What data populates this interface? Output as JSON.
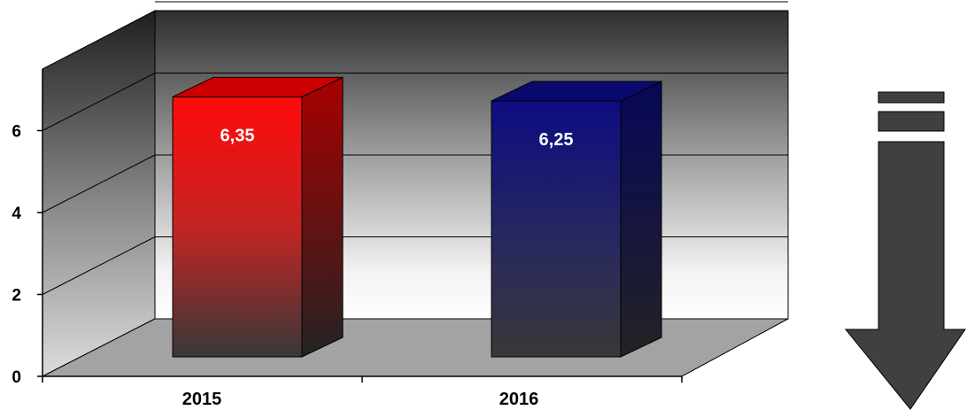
{
  "chart_data": {
    "type": "bar",
    "categories": [
      "2015",
      "2016"
    ],
    "values": [
      6.35,
      6.25
    ],
    "value_labels": [
      "6,35",
      "6,25"
    ],
    "ylim": [
      0,
      8
    ],
    "y_ticks": [
      0,
      2,
      4,
      6
    ],
    "y_tick_labels": [
      "0",
      "2",
      "4",
      "6"
    ],
    "grid": true,
    "three_d": true,
    "bar_colors": [
      "#ff0000",
      "#0b0b7a"
    ]
  },
  "trend_indicator": {
    "icon": "down-arrow-icon",
    "color": "#404040"
  }
}
